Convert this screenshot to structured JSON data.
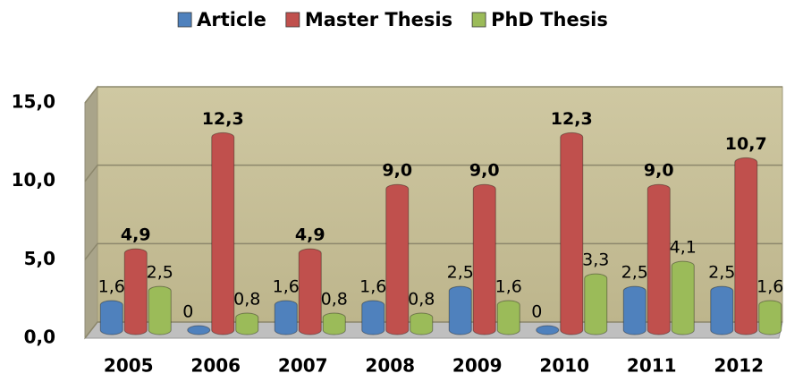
{
  "chart_data": {
    "type": "bar3d",
    "categories": [
      "2005",
      "2006",
      "2007",
      "2008",
      "2009",
      "2010",
      "2011",
      "2012"
    ],
    "series": [
      {
        "name": "Article",
        "color": "#4f81bd",
        "values": [
          1.6,
          0,
          1.6,
          1.6,
          2.5,
          0,
          2.5,
          2.5
        ],
        "value_labels": [
          "1,6",
          "0",
          "1,6",
          "1,6",
          "2,5",
          "0",
          "2,5",
          "2,5"
        ]
      },
      {
        "name": "Master Thesis",
        "color": "#c0504d",
        "values": [
          4.9,
          12.3,
          4.9,
          9.0,
          9.0,
          12.3,
          9.0,
          10.7
        ],
        "value_labels": [
          "4,9",
          "12,3",
          "4,9",
          "9,0",
          "9,0",
          "12,3",
          "9,0",
          "10,7"
        ]
      },
      {
        "name": "PhD Thesis",
        "color": "#9bbb59",
        "values": [
          2.5,
          0.8,
          0.8,
          0.8,
          1.6,
          3.3,
          4.1,
          1.6
        ],
        "value_labels": [
          "2,5",
          "0,8",
          "0,8",
          "0,8",
          "1,6",
          "3,3",
          "4,1",
          "1,6"
        ]
      }
    ],
    "ylim": [
      0,
      15
    ],
    "yticks": [
      {
        "value": 0,
        "label": "0,0"
      },
      {
        "value": 5,
        "label": "5,0"
      },
      {
        "value": 10,
        "label": "10,0"
      },
      {
        "value": 15,
        "label": "15,0"
      }
    ],
    "grid": true,
    "legend": "top"
  }
}
